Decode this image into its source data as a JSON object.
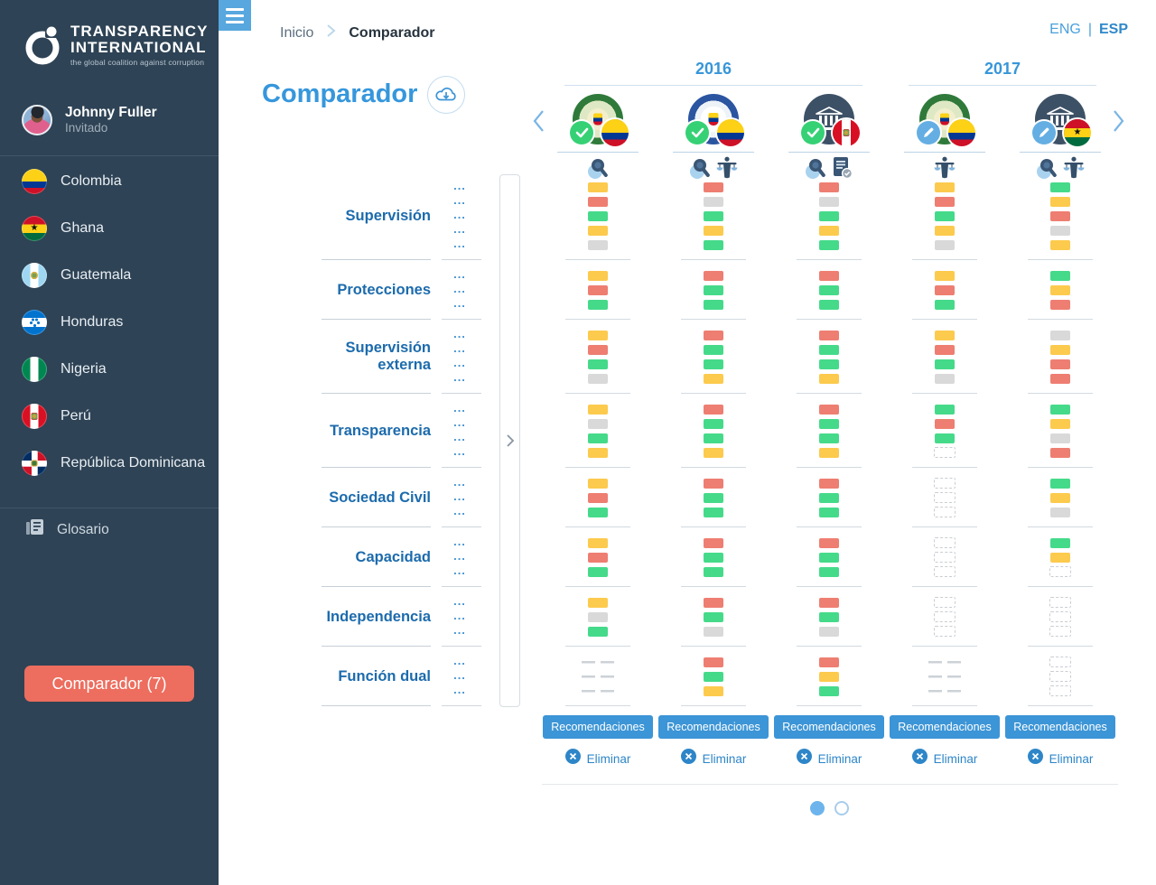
{
  "colors": {
    "sidebar_bg": "#2e4355",
    "accent_blue": "#3c95d6",
    "coral_button": "#ed6d5e",
    "bar_yellow": "#fcca4d",
    "bar_red": "#ee7e71",
    "bar_green": "#45da8a",
    "bar_gray": "#d9d9d9",
    "check_green": "#36d175",
    "badge_blue": "#64aee3"
  },
  "sidebar": {
    "logo": {
      "line1": "TRANSPARENCY",
      "line2": "INTERNATIONAL",
      "tagline": "the global coalition against corruption"
    },
    "user": {
      "name": "Johnny Fuller",
      "role": "Invitado"
    },
    "countries": [
      {
        "id": "colombia",
        "label": "Colombia"
      },
      {
        "id": "ghana",
        "label": "Ghana"
      },
      {
        "id": "guatemala",
        "label": "Guatemala"
      },
      {
        "id": "honduras",
        "label": "Honduras"
      },
      {
        "id": "nigeria",
        "label": "Nigeria"
      },
      {
        "id": "peru",
        "label": "Perú"
      },
      {
        "id": "dominicana",
        "label": "República Dominicana"
      }
    ],
    "glossary_label": "Glosario",
    "comparador_button": "Comparador (7)"
  },
  "topbar": {
    "breadcrumb": {
      "home": "Inicio",
      "current": "Comparador"
    },
    "language": {
      "eng": "ENG",
      "divider": "|",
      "esp": "ESP"
    }
  },
  "main": {
    "title": "Comparador",
    "ellipsis": "...",
    "years": [
      {
        "label": "2016",
        "columns": 3
      },
      {
        "label": "2017",
        "columns": 2
      }
    ],
    "columns": [
      {
        "year": "2016",
        "institution": "police",
        "flag": "colombia",
        "badge": "check",
        "icons": [
          "magnifier"
        ]
      },
      {
        "year": "2016",
        "institution": "fiscalia",
        "flag": "colombia",
        "badge": "check",
        "icons": [
          "magnifier",
          "scales"
        ]
      },
      {
        "year": "2016",
        "institution": "bank",
        "flag": "peru",
        "badge": "check",
        "icons": [
          "magnifier",
          "document"
        ]
      },
      {
        "year": "2017",
        "institution": "police",
        "flag": "colombia",
        "badge": "pencil",
        "icons": [
          "scales"
        ]
      },
      {
        "year": "2017",
        "institution": "bank",
        "flag": "ghana",
        "badge": "pencil",
        "icons": [
          "magnifier",
          "scales"
        ]
      }
    ],
    "categories": [
      {
        "label": "Supervisión",
        "bars": [
          [
            "yellow",
            "red",
            "green",
            "yellow",
            "gray"
          ],
          [
            "red",
            "gray",
            "green",
            "yellow",
            "green"
          ],
          [
            "red",
            "gray",
            "green",
            "yellow",
            "green"
          ],
          [
            "yellow",
            "red",
            "green",
            "yellow",
            "gray"
          ],
          [
            "green",
            "yellow",
            "red",
            "gray",
            "yellow"
          ]
        ]
      },
      {
        "label": "Protecciones",
        "bars": [
          [
            "yellow",
            "red",
            "green"
          ],
          [
            "red",
            "green",
            "green"
          ],
          [
            "red",
            "green",
            "green"
          ],
          [
            "yellow",
            "red",
            "green"
          ],
          [
            "green",
            "yellow",
            "red"
          ]
        ]
      },
      {
        "label": "Supervisión externa",
        "bars": [
          [
            "yellow",
            "red",
            "green",
            "gray"
          ],
          [
            "red",
            "green",
            "green",
            "yellow"
          ],
          [
            "red",
            "green",
            "green",
            "yellow"
          ],
          [
            "yellow",
            "red",
            "green",
            "gray"
          ],
          [
            "gray",
            "yellow",
            "red",
            "red"
          ]
        ]
      },
      {
        "label": "Transparencia",
        "bars": [
          [
            "yellow",
            "gray",
            "green",
            "yellow"
          ],
          [
            "red",
            "green",
            "green",
            "yellow"
          ],
          [
            "red",
            "green",
            "green",
            "yellow"
          ],
          [
            "green",
            "red",
            "green",
            "empty"
          ],
          [
            "green",
            "yellow",
            "gray",
            "red"
          ]
        ]
      },
      {
        "label": "Sociedad Civil",
        "bars": [
          [
            "yellow",
            "red",
            "green"
          ],
          [
            "red",
            "green",
            "green"
          ],
          [
            "red",
            "green",
            "green"
          ],
          [
            "empty",
            "empty",
            "empty"
          ],
          [
            "green",
            "yellow",
            "gray"
          ]
        ]
      },
      {
        "label": "Capacidad",
        "bars": [
          [
            "yellow",
            "red",
            "green"
          ],
          [
            "red",
            "green",
            "green"
          ],
          [
            "red",
            "green",
            "green"
          ],
          [
            "empty",
            "empty",
            "empty"
          ],
          [
            "green",
            "yellow",
            "empty"
          ]
        ]
      },
      {
        "label": "Independencia",
        "bars": [
          [
            "yellow",
            "gray",
            "green"
          ],
          [
            "red",
            "green",
            "gray"
          ],
          [
            "red",
            "green",
            "gray"
          ],
          [
            "empty",
            "empty",
            "empty"
          ],
          [
            "empty",
            "empty",
            "empty"
          ]
        ]
      },
      {
        "label": "Función dual",
        "bars": [
          [
            "na",
            "na",
            "na"
          ],
          [
            "red",
            "green",
            "yellow"
          ],
          [
            "red",
            "yellow",
            "green"
          ],
          [
            "na",
            "na",
            "na"
          ],
          [
            "empty",
            "empty",
            "empty"
          ]
        ]
      }
    ],
    "footer": {
      "recommend_label": "Recomendaciones",
      "delete_label": "Eliminar"
    },
    "pagination": {
      "total": 2,
      "active": 0
    }
  }
}
